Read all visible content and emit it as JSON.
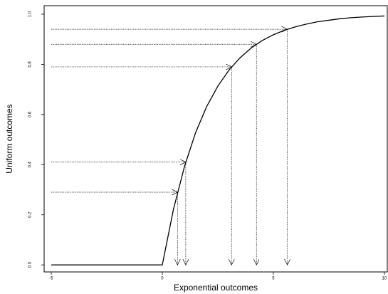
{
  "chart_data": {
    "type": "line",
    "xlabel": "Exponential outcomes",
    "ylabel": "Uniform outcomes",
    "series": [
      {
        "color": "#000000",
        "x": [
          -5,
          0,
          0.5,
          1,
          1.5,
          2,
          2.5,
          3,
          3.5,
          4,
          4.5,
          5,
          5.5,
          6,
          6.5,
          7,
          7.5,
          8,
          8.5,
          9,
          9.5,
          10
        ],
        "values": [
          0,
          0,
          0.221,
          0.393,
          0.528,
          0.632,
          0.713,
          0.777,
          0.826,
          0.865,
          0.895,
          0.918,
          0.936,
          0.95,
          0.961,
          0.97,
          0.976,
          0.982,
          0.986,
          0.989,
          0.991,
          0.993
        ]
      }
    ],
    "draws": {
      "y": [
        0.29,
        0.41,
        0.79,
        0.88,
        0.94
      ],
      "x": [
        0.685,
        1.055,
        3.12,
        4.24,
        5.63
      ]
    },
    "xlim": [
      -5.32,
      10.13
    ],
    "ylim": [
      -0.028,
      1.034
    ],
    "xticks": [
      -5,
      0,
      5,
      10
    ],
    "yticks": [
      {
        "value": 0,
        "label": "0.0"
      },
      0.2,
      0.4,
      0.6,
      0.8,
      {
        "value": 1,
        "label": "1.0"
      }
    ]
  }
}
